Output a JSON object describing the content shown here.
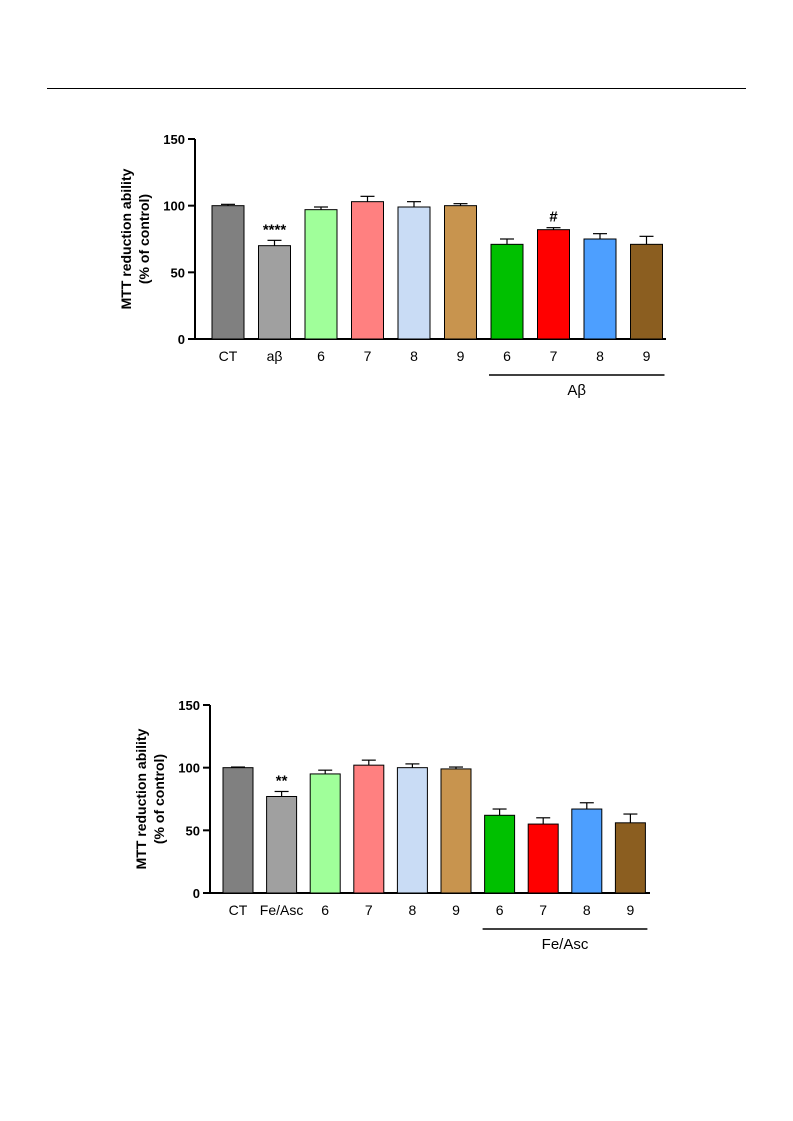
{
  "page": {
    "header_rule": true
  },
  "chart_data": [
    {
      "type": "bar",
      "ylabel_line1": "MTT reduction ability",
      "ylabel_line2": "(% of control)",
      "ylim": [
        0,
        150
      ],
      "yticks": [
        0,
        50,
        100,
        150
      ],
      "categories": [
        "CT",
        "aβ",
        "6",
        "7",
        "8",
        "9",
        "6",
        "7",
        "8",
        "9"
      ],
      "values": [
        100,
        70,
        97,
        103,
        99,
        100,
        71,
        82,
        75,
        71
      ],
      "errors": [
        1,
        4,
        2,
        4,
        4,
        1.5,
        4,
        1.5,
        4,
        6
      ],
      "colors": [
        "#808080",
        "#a0a0a0",
        "#a0ff9a",
        "#ff8080",
        "#c9dcf5",
        "#c8944e",
        "#00c000",
        "#ff0000",
        "#4d9fff",
        "#8b5e20"
      ],
      "annotations": [
        "",
        "****",
        "",
        "",
        "",
        "",
        "",
        "#",
        "",
        ""
      ],
      "group_label": "Aβ",
      "group_range": [
        6,
        9
      ],
      "grid": false,
      "legend": "none"
    },
    {
      "type": "bar",
      "ylabel_line1": "MTT reduction ability",
      "ylabel_line2": "(% of control)",
      "ylim": [
        0,
        150
      ],
      "yticks": [
        0,
        50,
        100,
        150
      ],
      "categories": [
        "CT",
        "Fe/Asc",
        "6",
        "7",
        "8",
        "9",
        "6",
        "7",
        "8",
        "9"
      ],
      "values": [
        100,
        77,
        95,
        102,
        100,
        99,
        62,
        55,
        67,
        56
      ],
      "errors": [
        0.5,
        4,
        3,
        4,
        3,
        1.5,
        5,
        5,
        5,
        7
      ],
      "colors": [
        "#808080",
        "#a0a0a0",
        "#a0ff9a",
        "#ff8080",
        "#c9dcf5",
        "#c8944e",
        "#00c000",
        "#ff0000",
        "#4d9fff",
        "#8b5e20"
      ],
      "annotations": [
        "",
        "**",
        "",
        "",
        "",
        "",
        "",
        "",
        "",
        ""
      ],
      "group_label": "Fe/Asc",
      "group_range": [
        6,
        9
      ],
      "grid": false,
      "legend": "none"
    }
  ]
}
